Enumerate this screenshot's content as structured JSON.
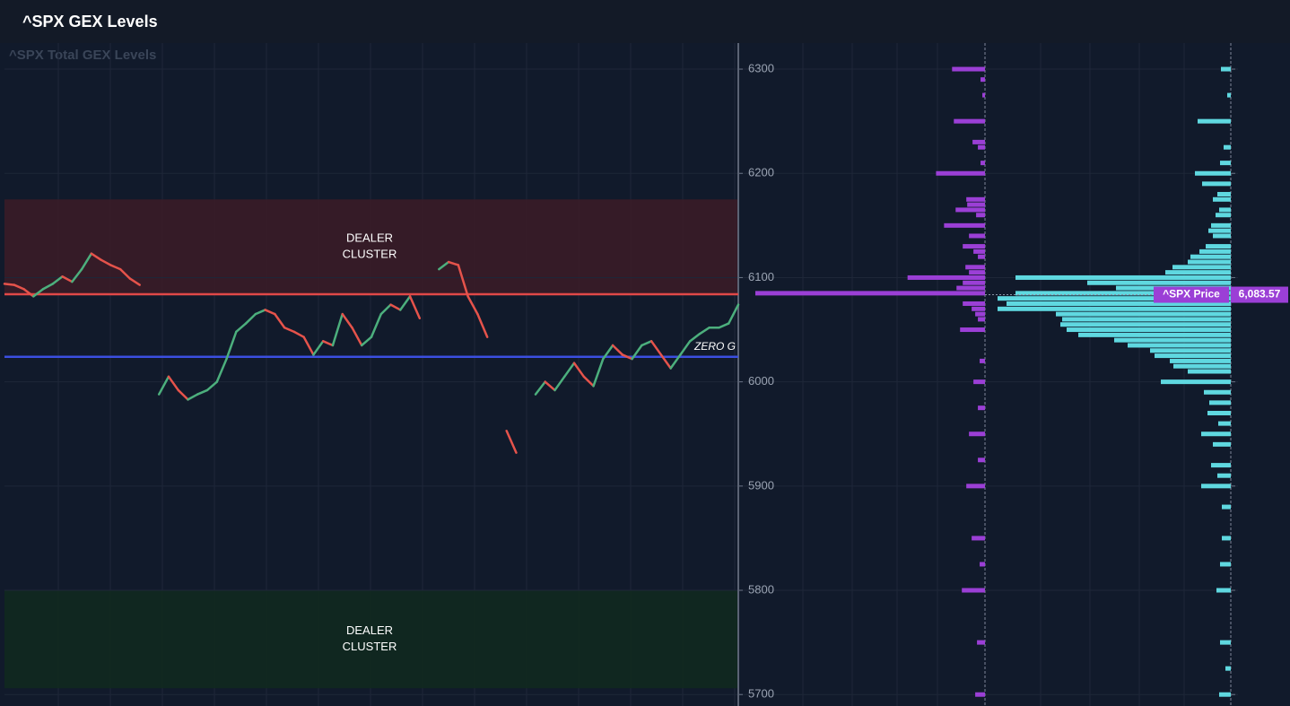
{
  "header": {
    "title": "^SPX GEX Levels"
  },
  "chart_data": {
    "type": "gex",
    "watermark": "^SPX Total GEX Levels",
    "ylim": [
      5689,
      6325
    ],
    "yticks": [
      5700,
      5800,
      5900,
      6000,
      6100,
      6200,
      6300
    ],
    "grid": true,
    "price_series": {
      "type": "line",
      "up_color": "#4caf7d",
      "down_color": "#e5534b",
      "values": [
        6094,
        6093,
        6089,
        6082,
        6089,
        6094,
        6101,
        6096,
        6108,
        6123,
        6117,
        6112,
        6108,
        6099,
        6093,
        null,
        5988,
        6005,
        5992,
        5983,
        5988,
        5992,
        6000,
        6022,
        6048,
        6056,
        6065,
        6069,
        6065,
        6052,
        6048,
        6043,
        6026,
        6039,
        6035,
        6065,
        6052,
        6035,
        6043,
        6065,
        6074,
        6069,
        6082,
        6061,
        null,
        6108,
        6115,
        6112,
        6082,
        6065,
        6043,
        null,
        5953,
        5932,
        null,
        5988,
        6000,
        5992,
        6005,
        6018,
        6005,
        5996,
        6022,
        6035,
        6026,
        6022,
        6035,
        6039,
        6026,
        6013,
        6026,
        6039,
        6046,
        6052,
        6052,
        6056,
        6074
      ]
    },
    "zones": [
      {
        "from": 6084,
        "to": 6175,
        "color": "#3a1c27",
        "label_lines": [
          "DEALER",
          "CLUSTER"
        ]
      },
      {
        "from": 5706,
        "to": 5800,
        "color": "#11291f",
        "label_lines": [
          "DEALER",
          "CLUSTER"
        ]
      }
    ],
    "levels": [
      {
        "value": 6084,
        "color": "#e04848"
      },
      {
        "value": 6024,
        "color": "#3b4fe0",
        "label": "ZERO G"
      }
    ],
    "gex_panels": [
      {
        "color": "#9b3fd6",
        "xlim": [
          0,
          260
        ],
        "strikes": [
          6300,
          6290,
          6275,
          6250,
          6230,
          6225,
          6210,
          6200,
          6175,
          6170,
          6165,
          6160,
          6150,
          6140,
          6130,
          6125,
          6120,
          6110,
          6105,
          6100,
          6095,
          6090,
          6085,
          6075,
          6070,
          6065,
          6060,
          6050,
          6020,
          6000,
          5975,
          5950,
          5925,
          5900,
          5850,
          5825,
          5800,
          5750,
          5700
        ],
        "values": [
          37,
          5,
          3,
          35,
          14,
          8,
          5,
          55,
          21,
          20,
          33,
          10,
          46,
          18,
          25,
          13,
          8,
          22,
          18,
          87,
          25,
          32,
          258,
          25,
          15,
          11,
          8,
          28,
          6,
          13,
          8,
          18,
          8,
          21,
          15,
          6,
          26,
          9,
          11
        ]
      },
      {
        "color": "#5fd8e0",
        "xlim": [
          0,
          272
        ],
        "strikes": [
          6300,
          6275,
          6250,
          6225,
          6210,
          6200,
          6190,
          6180,
          6175,
          6165,
          6160,
          6150,
          6145,
          6140,
          6130,
          6125,
          6120,
          6115,
          6110,
          6105,
          6100,
          6095,
          6090,
          6085,
          6080,
          6075,
          6070,
          6065,
          6060,
          6055,
          6050,
          6045,
          6040,
          6035,
          6030,
          6025,
          6020,
          6015,
          6010,
          6000,
          5990,
          5980,
          5970,
          5960,
          5950,
          5940,
          5920,
          5910,
          5900,
          5880,
          5850,
          5825,
          5800,
          5750,
          5725,
          5700
        ],
        "values": [
          11,
          4,
          37,
          8,
          12,
          40,
          32,
          15,
          20,
          13,
          17,
          22,
          25,
          20,
          28,
          35,
          45,
          48,
          65,
          73,
          240,
          160,
          128,
          240,
          260,
          250,
          260,
          195,
          188,
          190,
          183,
          170,
          130,
          115,
          90,
          85,
          68,
          64,
          48,
          78,
          30,
          24,
          26,
          14,
          33,
          20,
          22,
          15,
          33,
          10,
          10,
          12,
          16,
          12,
          6,
          13
        ]
      }
    ],
    "price_marker": {
      "name": "^SPX Price",
      "value": 6083.57,
      "label": "6,083.57",
      "color": "#9b3fd6"
    }
  }
}
